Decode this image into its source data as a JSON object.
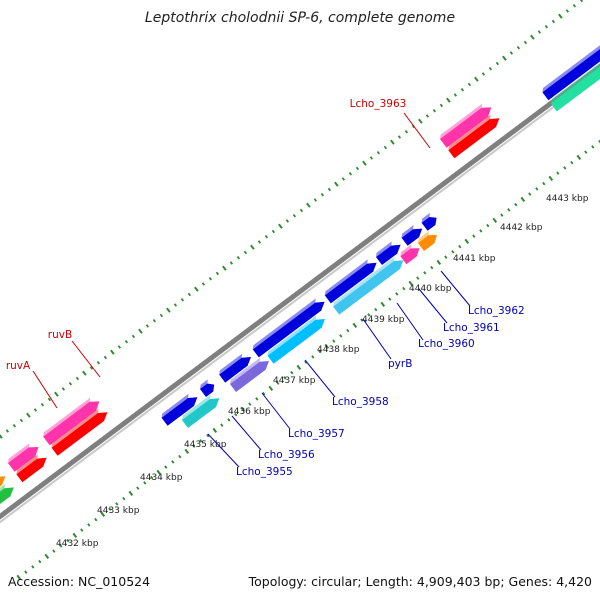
{
  "title": "Leptothrix cholodnii SP-6, complete genome",
  "footer": {
    "accession": "Accession: NC_010524",
    "summary": "Topology: circular; Length: 4,909,403 bp; Genes: 4,420"
  },
  "colors": {
    "background": "#ffffff",
    "backbone": "#7f7f7f",
    "backbone_light": "#c8c8c8",
    "ticks": "#2e8b2e",
    "label_red": "#cc0000",
    "label_blue": "#0000b4"
  },
  "scale": [
    "4432 kbp",
    "4433 kbp",
    "4434 kbp",
    "4435 kbp",
    "4436 kbp",
    "4437 kbp",
    "4438 kbp",
    "4439 kbp",
    "4440 kbp",
    "4441 kbp",
    "4442 kbp",
    "4443 kbp"
  ],
  "gene_labels": {
    "red": [
      "Lcho_3963",
      "ruvB",
      "ruvA"
    ],
    "blue": [
      "Lcho_3962",
      "Lcho_3961",
      "Lcho_3960",
      "pyrB",
      "Lcho_3958",
      "Lcho_3957",
      "Lcho_3956",
      "Lcho_3955"
    ]
  }
}
